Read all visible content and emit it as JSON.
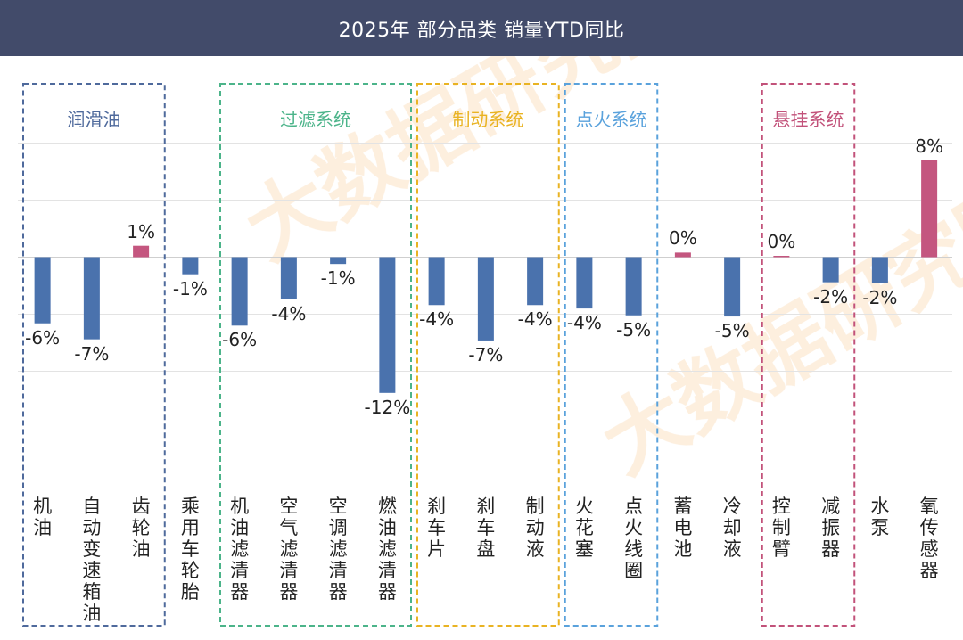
{
  "header": {
    "title": "2025年 部分品类 销量YTD同比"
  },
  "colors": {
    "header_bg": "#424b6a",
    "negative_bar": "#4a72ad",
    "positive_bar": "#c4567f",
    "gridline": "#e3e3e3",
    "watermark": "#f6c48a"
  },
  "watermark": {
    "text": "大数据研究院"
  },
  "chart_data": {
    "type": "bar",
    "title": "2025年 部分品类 销量YTD同比",
    "categories": [
      "机油",
      "自动变速箱油",
      "齿轮油",
      "乘用车轮胎",
      "机油滤清器",
      "空气滤清器",
      "空调滤清器",
      "燃油滤清器",
      "刹车片",
      "刹车盘",
      "制动液",
      "火花塞",
      "点火线圈",
      "蓄电池",
      "冷却液",
      "控制臂",
      "减振器",
      "水泵",
      "氧传感器"
    ],
    "values": [
      -5.8,
      -7.2,
      1.0,
      -1.5,
      -6.0,
      -3.7,
      -0.6,
      -11.9,
      -4.2,
      -7.3,
      -4.2,
      -4.5,
      -5.1,
      0.4,
      -5.2,
      0.1,
      -2.2,
      -2.3,
      8.5
    ],
    "data_labels": [
      "-6%",
      "-7%",
      "1%",
      "-1%",
      "-6%",
      "-4%",
      "-1%",
      "-12%",
      "-4%",
      "-7%",
      "-4%",
      "-4%",
      "-5%",
      "0%",
      "-5%",
      "0%",
      "-2%",
      "-2%",
      "8%"
    ],
    "ylim": [
      -15,
      15
    ],
    "grid": true,
    "groups": [
      {
        "name": "润滑油",
        "start": 0,
        "end": 2,
        "color": "#4f6a9c"
      },
      {
        "name": "过滤系统",
        "start": 4,
        "end": 7,
        "color": "#4cb48a"
      },
      {
        "name": "制动系统",
        "start": 8,
        "end": 10,
        "color": "#e9b323"
      },
      {
        "name": "点火系统",
        "start": 11,
        "end": 12,
        "color": "#5aa2dc"
      },
      {
        "name": "悬挂系统",
        "start": 15,
        "end": 16,
        "color": "#c2527a"
      }
    ]
  }
}
